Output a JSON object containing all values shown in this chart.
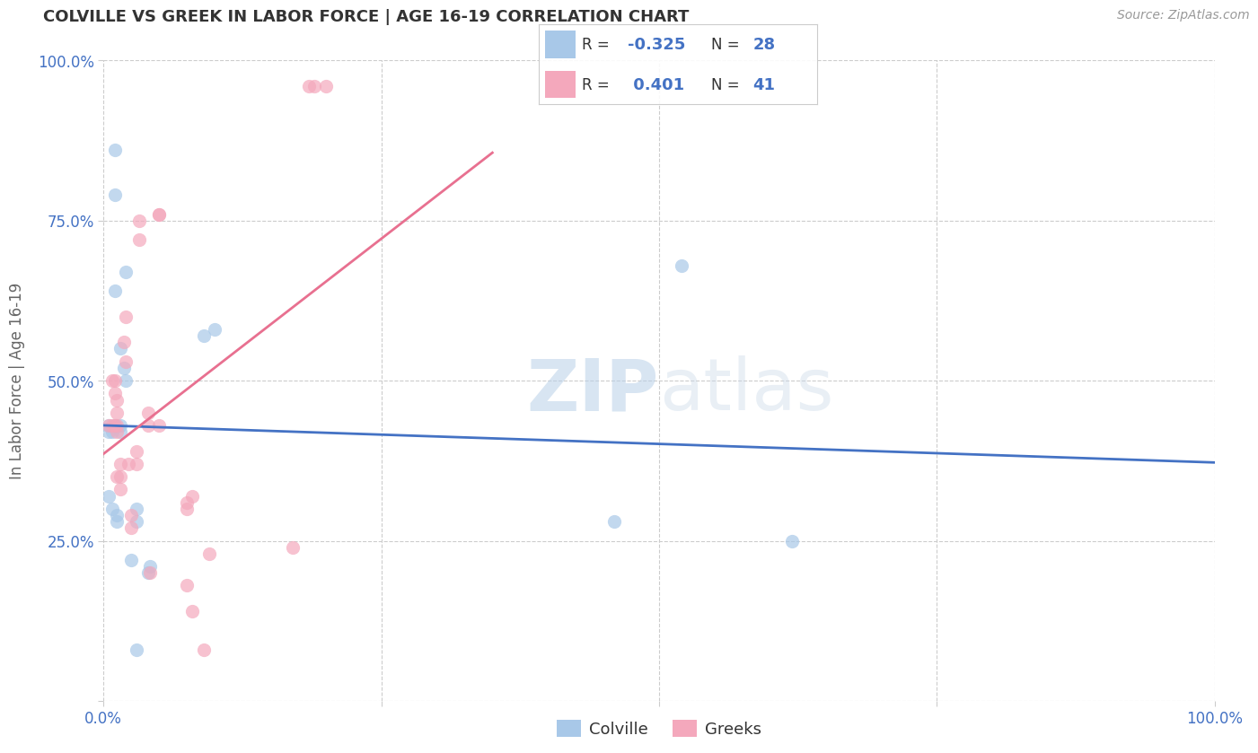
{
  "title": "COLVILLE VS GREEK IN LABOR FORCE | AGE 16-19 CORRELATION CHART",
  "source": "Source: ZipAtlas.com",
  "ylabel": "In Labor Force | Age 16-19",
  "xlim": [
    0,
    1
  ],
  "ylim": [
    0,
    1
  ],
  "colville_color": "#a8c8e8",
  "greek_color": "#f4a8bc",
  "colville_line_color": "#4472c4",
  "greek_line_color": "#e87090",
  "legend_R_color": "#4472c4",
  "colville_R": -0.325,
  "colville_N": 28,
  "greek_R": 0.401,
  "greek_N": 41,
  "colville_x": [
    0.005,
    0.005,
    0.005,
    0.008,
    0.008,
    0.01,
    0.01,
    0.01,
    0.01,
    0.012,
    0.012,
    0.015,
    0.015,
    0.015,
    0.018,
    0.02,
    0.02,
    0.025,
    0.03,
    0.03,
    0.03,
    0.09,
    0.1,
    0.04,
    0.042,
    0.52,
    0.62,
    0.46
  ],
  "colville_y": [
    0.43,
    0.32,
    0.42,
    0.42,
    0.3,
    0.64,
    0.86,
    0.79,
    0.43,
    0.29,
    0.28,
    0.43,
    0.42,
    0.55,
    0.52,
    0.5,
    0.67,
    0.22,
    0.28,
    0.3,
    0.08,
    0.57,
    0.58,
    0.2,
    0.21,
    0.68,
    0.25,
    0.28
  ],
  "greek_x": [
    0.005,
    0.008,
    0.008,
    0.01,
    0.01,
    0.01,
    0.012,
    0.012,
    0.012,
    0.012,
    0.012,
    0.015,
    0.015,
    0.015,
    0.018,
    0.02,
    0.02,
    0.022,
    0.025,
    0.025,
    0.03,
    0.03,
    0.032,
    0.032,
    0.04,
    0.04,
    0.042,
    0.05,
    0.05,
    0.05,
    0.075,
    0.075,
    0.075,
    0.08,
    0.08,
    0.09,
    0.095,
    0.17,
    0.185,
    0.2,
    0.19
  ],
  "greek_y": [
    0.43,
    0.43,
    0.5,
    0.43,
    0.48,
    0.5,
    0.42,
    0.43,
    0.45,
    0.47,
    0.35,
    0.33,
    0.35,
    0.37,
    0.56,
    0.6,
    0.53,
    0.37,
    0.27,
    0.29,
    0.39,
    0.37,
    0.72,
    0.75,
    0.43,
    0.45,
    0.2,
    0.43,
    0.76,
    0.76,
    0.31,
    0.3,
    0.18,
    0.32,
    0.14,
    0.08,
    0.23,
    0.24,
    0.96,
    0.96,
    0.96
  ],
  "watermark_zip": "ZIP",
  "watermark_atlas": "atlas",
  "background_color": "#ffffff",
  "grid_color": "#cccccc"
}
